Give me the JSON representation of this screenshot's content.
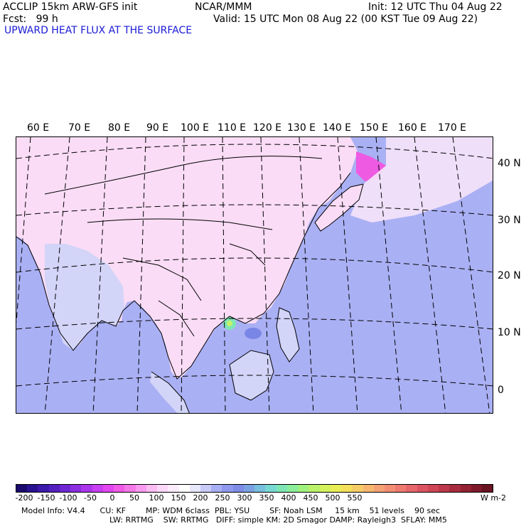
{
  "header": {
    "model_line": "ACCLIP 15km ARW-GFS init",
    "org": "NCAR/MMM",
    "init": "Init: 12 UTC Thu 04 Aug 22",
    "fcst": "Fcst:   99 h",
    "valid": "Valid: 15 UTC Mon 08 Aug 22 (00 KST Tue 09 Aug 22)",
    "field": "UPWARD HEAT FLUX AT THE SURFACE"
  },
  "map": {
    "lon_labels": [
      "60 E",
      "70 E",
      "80 E",
      "90 E",
      "100 E",
      "110 E",
      "120 E",
      "130 E",
      "140 E",
      "150 E",
      "160 E",
      "170 E"
    ],
    "lat_labels": [
      "40 N",
      "30 N",
      "20 N",
      "10 N",
      "0"
    ]
  },
  "colorbar": {
    "unit": "W m-2",
    "tick_labels": [
      "-200",
      "-150",
      "-100",
      "-50",
      "0",
      "50",
      "100",
      "150",
      "200",
      "250",
      "300",
      "350",
      "400",
      "450",
      "500",
      "550"
    ],
    "colors": [
      "#1a0a6e",
      "#2a1290",
      "#3c1aaa",
      "#5420c0",
      "#6e26d2",
      "#8c2ee0",
      "#aa36ec",
      "#c83ef2",
      "#e246f0",
      "#f05ae6",
      "#f478e8",
      "#f89af0",
      "#fbbcf4",
      "#fcd8f8",
      "#fdecfb",
      "#ffffff",
      "#e8e8fc",
      "#c8caf8",
      "#a8aef4",
      "#8e98ec",
      "#7e8ce6",
      "#7aa2e2",
      "#78bede",
      "#78d8d2",
      "#7ee6b6",
      "#8aee9a",
      "#a0f27e",
      "#baf26a",
      "#d4f25c",
      "#eaee56",
      "#f4e05a",
      "#f6cc66",
      "#f6b66e",
      "#f4a274",
      "#f28e74",
      "#ee7a70",
      "#e6666a",
      "#dc5462",
      "#ce4656",
      "#bc384a",
      "#a82c3e",
      "#922234",
      "#7c1a2a",
      "#681422"
    ],
    "field_colors": {
      "ocean": "#aab0f4",
      "land_pos": "#d2d4f8",
      "land_neg": "#fadcf6",
      "strong_neg": "#ee5ae2",
      "hot": "#7ee6b6"
    }
  },
  "footer": {
    "line1": "Model Info: V4.4      CU: KF        MP: WDM 6class  PBL: YSU        SF: Noah LSM     15 km    51 levels    90 sec",
    "line2": "LW: RRTMG    SW: RRTMG   DIFF: simple KM: 2D Smagor DAMP: Rayleigh3  SFLAY: MM5"
  }
}
